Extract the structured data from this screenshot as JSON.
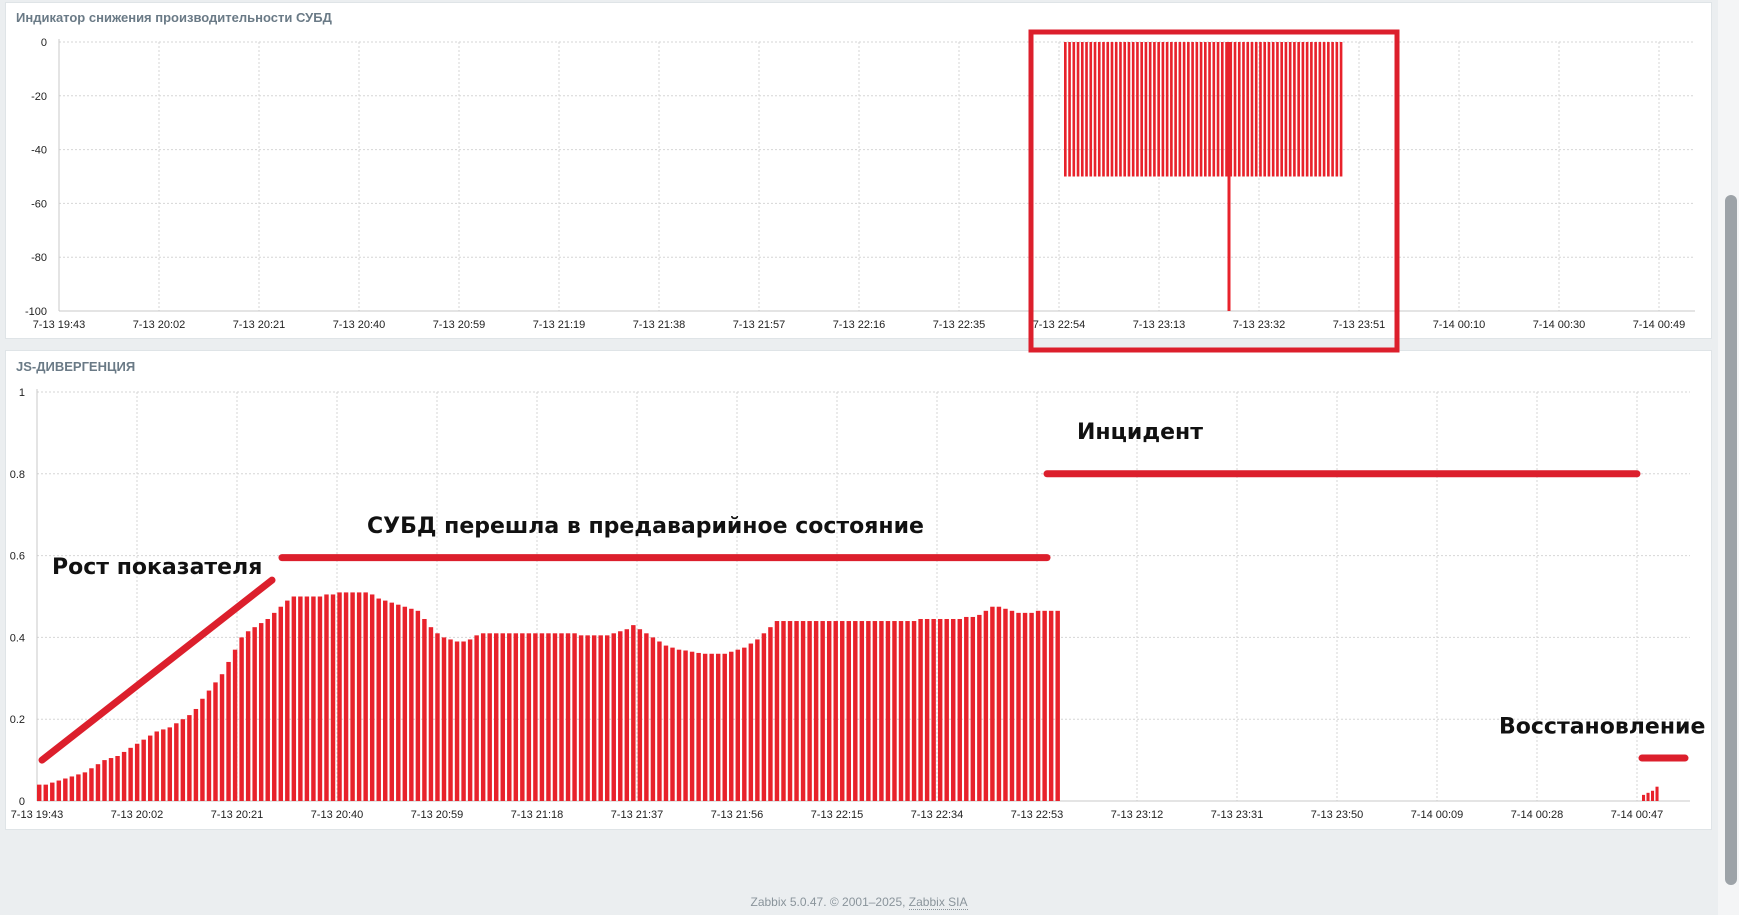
{
  "footer": {
    "version": "Zabbix 5.0.47. © 2001–2025, ",
    "company_link": "Zabbix SIA"
  },
  "colors": {
    "bar": "#e8222b",
    "annotation": "#dc1f2c",
    "grid": "#d6d6d6"
  },
  "chart_data": [
    {
      "type": "bar",
      "title": "Индикатор снижения производительности СУБД",
      "ylim": [
        -100,
        0
      ],
      "y_ticks": [
        "0",
        "-20",
        "-40",
        "-60",
        "-80",
        "-100"
      ],
      "x_ticks": [
        "7-13 19:43",
        "7-13 20:02",
        "7-13 20:21",
        "7-13 20:40",
        "7-13 20:59",
        "7-13 21:19",
        "7-13 21:38",
        "7-13 21:57",
        "7-13 22:16",
        "7-13 22:35",
        "7-13 22:54",
        "7-13 23:13",
        "7-13 23:32",
        "7-13 23:51",
        "7-14 00:10",
        "7-14 00:30",
        "7-14 00:49"
      ],
      "grid": true,
      "series": [
        {
          "bars_start_tick_offset": 10.05,
          "bars_end_tick_offset": 12.85,
          "bar_count": 66,
          "value": -50,
          "spike": {
            "tick_offset": 11.7,
            "value": -100
          }
        }
      ],
      "highlight": {
        "from_tick": 9.7,
        "to_tick": 13.4
      }
    },
    {
      "type": "bar",
      "title": "JS-ДИВЕРГЕНЦИЯ",
      "ylim": [
        0,
        1
      ],
      "y_ticks": [
        "1",
        "0.8",
        "0.6",
        "0.4",
        "0.2",
        "0"
      ],
      "x_ticks": [
        "7-13 19:43",
        "7-13 20:02",
        "7-13 20:21",
        "7-13 20:40",
        "7-13 20:59",
        "7-13 21:18",
        "7-13 21:37",
        "7-13 21:56",
        "7-13 22:15",
        "7-13 22:34",
        "7-13 22:53",
        "7-13 23:12",
        "7-13 23:31",
        "7-13 23:50",
        "7-14 00:09",
        "7-14 00:28",
        "7-14 00:47"
      ],
      "grid": true,
      "series": [
        {
          "start_tick": 0,
          "end_tick": 10.25,
          "values": [
            0.04,
            0.04,
            0.045,
            0.05,
            0.055,
            0.06,
            0.065,
            0.07,
            0.08,
            0.09,
            0.1,
            0.105,
            0.11,
            0.12,
            0.13,
            0.14,
            0.15,
            0.16,
            0.17,
            0.175,
            0.18,
            0.19,
            0.2,
            0.21,
            0.225,
            0.25,
            0.27,
            0.29,
            0.31,
            0.34,
            0.37,
            0.4,
            0.415,
            0.425,
            0.435,
            0.445,
            0.46,
            0.475,
            0.49,
            0.5,
            0.5,
            0.5,
            0.5,
            0.5,
            0.505,
            0.505,
            0.51,
            0.51,
            0.51,
            0.51,
            0.51,
            0.505,
            0.495,
            0.49,
            0.485,
            0.48,
            0.475,
            0.47,
            0.465,
            0.445,
            0.425,
            0.41,
            0.4,
            0.395,
            0.39,
            0.39,
            0.395,
            0.405,
            0.41,
            0.41,
            0.41,
            0.41,
            0.41,
            0.41,
            0.41,
            0.41,
            0.41,
            0.41,
            0.41,
            0.41,
            0.41,
            0.41,
            0.41,
            0.405,
            0.405,
            0.405,
            0.405,
            0.405,
            0.41,
            0.415,
            0.42,
            0.43,
            0.42,
            0.41,
            0.4,
            0.39,
            0.38,
            0.375,
            0.37,
            0.368,
            0.365,
            0.362,
            0.36,
            0.36,
            0.36,
            0.36,
            0.365,
            0.37,
            0.375,
            0.385,
            0.395,
            0.41,
            0.425,
            0.44,
            0.44,
            0.44,
            0.44,
            0.44,
            0.44,
            0.44,
            0.44,
            0.44,
            0.44,
            0.44,
            0.44,
            0.44,
            0.44,
            0.44,
            0.44,
            0.44,
            0.44,
            0.44,
            0.44,
            0.44,
            0.44,
            0.445,
            0.445,
            0.445,
            0.445,
            0.445,
            0.445,
            0.445,
            0.45,
            0.45,
            0.455,
            0.465,
            0.475,
            0.475,
            0.47,
            0.465,
            0.46,
            0.46,
            0.46,
            0.465,
            0.465,
            0.465,
            0.465
          ]
        },
        {
          "start_tick": 16.05,
          "end_tick": 16.23,
          "values": [
            0.015,
            0.02,
            0.025,
            0.035
          ]
        }
      ],
      "annotations": [
        {
          "text": "Рост показателя",
          "line": {
            "x1_tick": 0.05,
            "y1": 0.1,
            "x2_tick": 2.35,
            "y2": 0.54
          },
          "label_at": {
            "x_tick": 0.15,
            "y": 0.555
          }
        },
        {
          "text": "СУБД перешла в предаварийное состояние",
          "line": {
            "x1_tick": 2.45,
            "y1": 0.595,
            "x2_tick": 10.1,
            "y2": 0.595
          },
          "label_at": {
            "x_tick": 3.3,
            "y": 0.655
          }
        },
        {
          "text": "Инцидент",
          "line": {
            "x1_tick": 10.1,
            "y1": 0.8,
            "x2_tick": 16.0,
            "y2": 0.8
          },
          "label_at": {
            "x_tick": 10.4,
            "y": 0.885
          }
        },
        {
          "text": "Восстановление",
          "line": {
            "x1_tick": 16.05,
            "y1": 0.105,
            "x2_tick": 16.48,
            "y2": 0.105
          },
          "label_at": {
            "x_tick": 14.62,
            "y": 0.165
          }
        }
      ]
    }
  ]
}
